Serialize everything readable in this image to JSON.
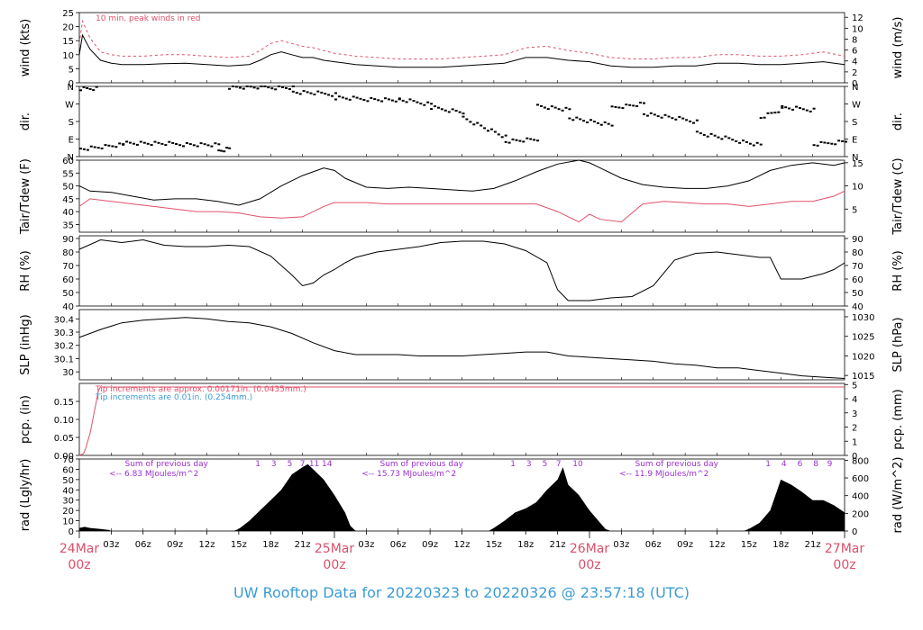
{
  "caption": "UW Rooftop Data for 20220323  to  20220326 @ 23:57:18  (UTC)",
  "colors": {
    "primary": "#000000",
    "accent": "#e0506a",
    "note_blue": "#3b9bd4",
    "note_purple": "#9b30d0",
    "date_label": "#d9506a"
  },
  "time_axis": {
    "minor_labels": [
      "03z",
      "06z",
      "09z",
      "12z",
      "15z",
      "18z",
      "21z",
      "03z",
      "06z",
      "09z",
      "12z",
      "15z",
      "18z",
      "21z",
      "03z",
      "06z",
      "09z",
      "12z",
      "15z",
      "18z",
      "21z"
    ],
    "minor_hours": [
      3,
      6,
      9,
      12,
      15,
      18,
      21,
      27,
      30,
      33,
      36,
      39,
      42,
      45,
      51,
      54,
      57,
      60,
      63,
      66,
      69
    ],
    "day_labels": [
      {
        "hour": 0,
        "date": "24Mar",
        "time": "00z"
      },
      {
        "hour": 24,
        "date": "25Mar",
        "time": "00z"
      },
      {
        "hour": 48,
        "date": "26Mar",
        "time": "00z"
      },
      {
        "hour": 72,
        "date": "27Mar",
        "time": "00z"
      }
    ]
  },
  "chart_data": [
    {
      "type": "line",
      "id": "wind",
      "ylabel_left": "wind (kts)",
      "ylabel_right": "wind (m/s)",
      "annotation": "10 min. peak winds in red",
      "ylim": [
        0,
        25
      ],
      "yticks_left": [
        0,
        5,
        10,
        15,
        20,
        25
      ],
      "yticks_right": [
        0,
        2,
        4,
        6,
        8,
        10,
        12
      ],
      "right_scale": 0.5144,
      "series": [
        {
          "role": "mean",
          "x": [
            0,
            0.3,
            1,
            2,
            3,
            4,
            6,
            8,
            10,
            12,
            14,
            16,
            17,
            18,
            19,
            20,
            21,
            22,
            23,
            24,
            26,
            28,
            30,
            32,
            34,
            36,
            38,
            40,
            42,
            44,
            46,
            48,
            50,
            52,
            54,
            56,
            58,
            60,
            62,
            64,
            66,
            68,
            70,
            72
          ],
          "y": [
            10,
            17,
            12,
            8,
            7,
            6.5,
            6.5,
            6.8,
            7,
            6.5,
            6,
            6.5,
            8,
            10,
            11,
            10,
            9,
            9,
            8,
            7.5,
            6.5,
            6,
            5.5,
            5.5,
            5.5,
            6,
            6.5,
            7,
            9,
            9,
            8,
            7.5,
            6,
            5.5,
            5.5,
            6,
            6,
            7,
            7,
            6.5,
            6.5,
            7,
            7.5,
            6.5
          ]
        },
        {
          "role": "peak",
          "x": [
            0,
            0.3,
            1,
            2,
            3,
            4,
            6,
            8,
            10,
            12,
            14,
            16,
            17,
            18,
            19,
            20,
            21,
            22,
            23,
            24,
            26,
            28,
            30,
            32,
            34,
            36,
            38,
            40,
            42,
            44,
            46,
            48,
            50,
            52,
            54,
            56,
            58,
            60,
            62,
            64,
            66,
            68,
            70,
            72
          ],
          "y": [
            14,
            22,
            16,
            11,
            10,
            9.5,
            9.5,
            10,
            10,
            9.5,
            9,
            9.5,
            11.5,
            14,
            15,
            14,
            13,
            12.5,
            11.5,
            10.5,
            9.5,
            9,
            8.5,
            8.5,
            8.5,
            9,
            9.5,
            10,
            12.5,
            13,
            11.5,
            10.5,
            9,
            8.5,
            8.5,
            9,
            9,
            10,
            10,
            9.5,
            9.5,
            10,
            11,
            9.5
          ]
        }
      ]
    },
    {
      "type": "scatter",
      "id": "dir",
      "ylabel_left": "dir.",
      "ylabel_right": "dir.",
      "ylim": [
        0,
        360
      ],
      "ytick_labels": [
        "N",
        "E",
        "S",
        "W",
        "N"
      ],
      "segments": [
        {
          "x": [
            0,
            1.5
          ],
          "y": [
            350,
            350
          ]
        },
        {
          "x": [
            0,
            4
          ],
          "y": [
            40,
            60
          ]
        },
        {
          "x": [
            4,
            13
          ],
          "y": [
            70,
            60
          ]
        },
        {
          "x": [
            13,
            14
          ],
          "y": [
            30,
            40
          ]
        },
        {
          "x": [
            14,
            20
          ],
          "y": [
            355,
            355
          ]
        },
        {
          "x": [
            20,
            24
          ],
          "y": [
            330,
            320
          ]
        },
        {
          "x": [
            24,
            30
          ],
          "y": [
            300,
            290
          ]
        },
        {
          "x": [
            30,
            33
          ],
          "y": [
            290,
            270
          ]
        },
        {
          "x": [
            33,
            36
          ],
          "y": [
            250,
            230
          ]
        },
        {
          "x": [
            36,
            40
          ],
          "y": [
            200,
            100
          ]
        },
        {
          "x": [
            40,
            43
          ],
          "y": [
            80,
            90
          ]
        },
        {
          "x": [
            43,
            46
          ],
          "y": [
            260,
            240
          ]
        },
        {
          "x": [
            46,
            50
          ],
          "y": [
            200,
            160
          ]
        },
        {
          "x": [
            50,
            53
          ],
          "y": [
            250,
            270
          ]
        },
        {
          "x": [
            53,
            58
          ],
          "y": [
            220,
            180
          ]
        },
        {
          "x": [
            58,
            64
          ],
          "y": [
            120,
            60
          ]
        },
        {
          "x": [
            64,
            66
          ],
          "y": [
            200,
            240
          ]
        },
        {
          "x": [
            66,
            69
          ],
          "y": [
            250,
            240
          ]
        },
        {
          "x": [
            69,
            72
          ],
          "y": [
            60,
            80
          ]
        }
      ]
    },
    {
      "type": "line",
      "id": "temp",
      "ylabel_left": "Tair/Tdew (F)",
      "ylabel_right": "Tair/Tdew (C)",
      "ylim": [
        32,
        60
      ],
      "yticks_left": [
        35,
        40,
        45,
        50,
        55,
        60
      ],
      "yticks_right": [
        5,
        10,
        15
      ],
      "series": [
        {
          "role": "tair",
          "x": [
            0,
            1,
            3,
            5,
            7,
            9,
            11,
            13,
            15,
            17,
            19,
            21,
            23,
            24,
            25,
            27,
            29,
            31,
            33,
            35,
            37,
            39,
            41,
            43,
            45,
            47,
            48,
            49,
            51,
            53,
            55,
            57,
            59,
            61,
            63,
            65,
            67,
            69,
            71,
            72
          ],
          "y": [
            50,
            48,
            47.5,
            46,
            44.5,
            45,
            45,
            44,
            42.5,
            45,
            50,
            54,
            57,
            56,
            53,
            49.5,
            49,
            49.5,
            49,
            48.5,
            48,
            49,
            52,
            55.5,
            58.5,
            60,
            59,
            57,
            53,
            50.5,
            49.5,
            49,
            49,
            50,
            52,
            56,
            58,
            59,
            58,
            59
          ]
        },
        {
          "role": "tdew",
          "x": [
            0,
            1,
            3,
            5,
            7,
            9,
            11,
            13,
            15,
            17,
            19,
            21,
            23,
            24,
            25,
            27,
            29,
            31,
            33,
            35,
            37,
            39,
            41,
            43,
            45,
            47,
            48,
            49,
            51,
            53,
            55,
            57,
            59,
            61,
            63,
            65,
            67,
            69,
            71,
            72
          ],
          "y": [
            42,
            45,
            44,
            43,
            42,
            41,
            40,
            40,
            39.5,
            38,
            37.5,
            38,
            42,
            43.5,
            43.5,
            43.5,
            43,
            43,
            43,
            43,
            43,
            43,
            43,
            43,
            40,
            36,
            39,
            37,
            36,
            43,
            44,
            43.5,
            43,
            43,
            42,
            43,
            44,
            44,
            46,
            48
          ]
        }
      ]
    },
    {
      "type": "line",
      "id": "rh",
      "ylabel_left": "RH (%)",
      "ylabel_right": "RH (%)",
      "ylim": [
        40,
        92
      ],
      "yticks_left": [
        40,
        50,
        60,
        70,
        80,
        90
      ],
      "yticks_right": [
        40,
        50,
        60,
        70,
        80,
        90
      ],
      "series": [
        {
          "role": "rh",
          "x": [
            0,
            2,
            4,
            6,
            8,
            10,
            12,
            14,
            16,
            18,
            20,
            21,
            22,
            23,
            24,
            25,
            26,
            28,
            30,
            32,
            34,
            36,
            38,
            40,
            42,
            44,
            45,
            46,
            47,
            48,
            50,
            52,
            54,
            56,
            58,
            60,
            62,
            64,
            65,
            66,
            68,
            70,
            71,
            72
          ],
          "y": [
            82,
            89,
            87,
            89,
            85,
            84,
            84,
            85,
            84,
            77,
            63,
            55,
            57,
            63,
            67,
            72,
            76,
            80,
            82,
            84,
            87,
            88,
            88,
            86,
            81,
            72,
            52,
            44,
            44,
            44,
            46,
            47,
            55,
            74,
            79,
            80,
            78,
            76,
            76,
            60,
            60,
            64,
            67,
            72
          ]
        }
      ]
    },
    {
      "type": "line",
      "id": "slp",
      "ylabel_left": "SLP (inHg)",
      "ylabel_right": "SLP (hPa)",
      "ylim": [
        29.94,
        30.47
      ],
      "yticks_left": [
        30.0,
        30.1,
        30.2,
        30.3,
        30.4
      ],
      "yticks_right": [
        1015,
        1020,
        1025,
        1030
      ],
      "series": [
        {
          "role": "slp",
          "x": [
            0,
            2,
            4,
            6,
            8,
            10,
            12,
            14,
            16,
            18,
            20,
            22,
            24,
            26,
            28,
            30,
            32,
            34,
            36,
            38,
            40,
            42,
            44,
            46,
            48,
            50,
            52,
            54,
            56,
            58,
            60,
            62,
            64,
            66,
            68,
            70,
            72
          ],
          "y": [
            30.26,
            30.32,
            30.37,
            30.39,
            30.4,
            30.41,
            30.4,
            30.38,
            30.37,
            30.34,
            30.29,
            30.22,
            30.16,
            30.13,
            30.13,
            30.13,
            30.12,
            30.12,
            30.12,
            30.13,
            30.14,
            30.15,
            30.15,
            30.12,
            30.11,
            30.1,
            30.09,
            30.08,
            30.06,
            30.05,
            30.03,
            30.03,
            30.01,
            29.99,
            29.97,
            29.96,
            29.95
          ]
        }
      ]
    },
    {
      "type": "line",
      "id": "pcp",
      "ylabel_left": "pcp. (in)",
      "ylabel_right": "pcp. (mm)",
      "ylim": [
        0,
        0.2
      ],
      "yticks_left": [
        "0.00",
        "0.05",
        "0.10",
        "0.15"
      ],
      "yticks_right": [
        0,
        1,
        2,
        3,
        4,
        5
      ],
      "annotations": [
        {
          "text": "Tip increments are approx. 0.00171in. (0.0435mm.)",
          "color": "accent"
        },
        {
          "text": "Tip increments are 0.01in. (0.254mm.)",
          "color": "note_blue"
        }
      ],
      "series": [
        {
          "role": "pcp",
          "x": [
            0,
            0.4,
            0.6,
            0.8,
            1.0,
            1.2,
            1.4,
            1.6,
            1.8,
            2.0,
            72
          ],
          "y": [
            0,
            0.005,
            0.02,
            0.04,
            0.06,
            0.09,
            0.12,
            0.15,
            0.18,
            0.19,
            0.19
          ]
        }
      ]
    },
    {
      "type": "area",
      "id": "rad",
      "ylabel_left": "rad (Lgly/hr)",
      "ylabel_right": "rad (W/m^2)",
      "ylim": [
        0,
        70
      ],
      "yticks_left": [
        0,
        10,
        20,
        30,
        40,
        50,
        60,
        70
      ],
      "yticks_right": [
        0,
        200,
        400,
        600,
        800
      ],
      "day_sums": [
        {
          "hour": 6,
          "title": "Sum of previous day",
          "value": "<-- 6.83 MJoules/m^2"
        },
        {
          "hour": 30,
          "title": "Sum of previous day",
          "value": "<-- 15.73 MJoules/m^2"
        },
        {
          "hour": 54,
          "title": "Sum of previous day",
          "value": "<-- 11.9 MJoules/m^2"
        }
      ],
      "hour_markers": [
        {
          "hour": 16.8,
          "label": "1"
        },
        {
          "hour": 18.3,
          "label": "3"
        },
        {
          "hour": 19.8,
          "label": "5"
        },
        {
          "hour": 21.0,
          "label": "7"
        },
        {
          "hour": 22.1,
          "label": "11"
        },
        {
          "hour": 23.3,
          "label": "14"
        },
        {
          "hour": 40.8,
          "label": "1"
        },
        {
          "hour": 42.3,
          "label": "3"
        },
        {
          "hour": 43.8,
          "label": "5"
        },
        {
          "hour": 45.1,
          "label": "7"
        },
        {
          "hour": 46.9,
          "label": "10"
        },
        {
          "hour": 64.8,
          "label": "1"
        },
        {
          "hour": 66.3,
          "label": "4"
        },
        {
          "hour": 67.8,
          "label": "6"
        },
        {
          "hour": 69.3,
          "label": "8"
        },
        {
          "hour": 70.6,
          "label": "9"
        }
      ],
      "series": [
        {
          "role": "rad",
          "x": [
            0,
            0.5,
            1,
            2,
            2.8,
            3,
            14.5,
            15,
            16,
            17,
            18,
            19,
            20,
            21,
            21.5,
            22,
            23,
            24,
            25,
            25.5,
            26,
            38.5,
            39,
            40,
            41,
            42,
            43,
            44,
            45,
            45.5,
            46,
            47,
            48,
            49,
            49.5,
            50,
            62.5,
            63,
            64,
            65,
            66,
            67,
            68,
            69,
            70,
            71,
            72
          ],
          "y": [
            3,
            4,
            3,
            2,
            1,
            0,
            0,
            2,
            10,
            20,
            30,
            40,
            55,
            62,
            65,
            60,
            50,
            35,
            18,
            5,
            0,
            0,
            3,
            10,
            18,
            22,
            28,
            40,
            50,
            62,
            45,
            35,
            20,
            8,
            2,
            0,
            0,
            2,
            8,
            20,
            50,
            45,
            38,
            30,
            30,
            25,
            18
          ]
        }
      ]
    }
  ]
}
